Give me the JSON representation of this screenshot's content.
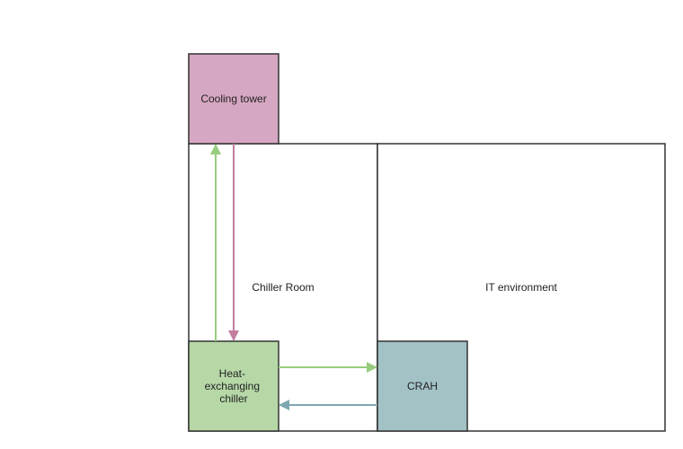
{
  "diagram": {
    "regions": {
      "chiller_room": {
        "label": "Chiller Room"
      },
      "it_environment": {
        "label": "IT environment"
      }
    },
    "components": {
      "cooling_tower": {
        "label": "Cooling tower",
        "fill": "#d6a7c2"
      },
      "chiller": {
        "label_lines": [
          "Heat-",
          "exchanging",
          "chiller"
        ],
        "fill": "#b6d8a7"
      },
      "crah": {
        "label": "CRAH",
        "fill": "#a3c2c6"
      }
    },
    "flows": {
      "chiller_to_tower": {
        "color": "#97cc7e"
      },
      "tower_to_chiller": {
        "color": "#c37d9f"
      },
      "chiller_to_crah": {
        "color": "#97cc7e"
      },
      "crah_to_chiller": {
        "color": "#7fa7b0"
      }
    }
  }
}
